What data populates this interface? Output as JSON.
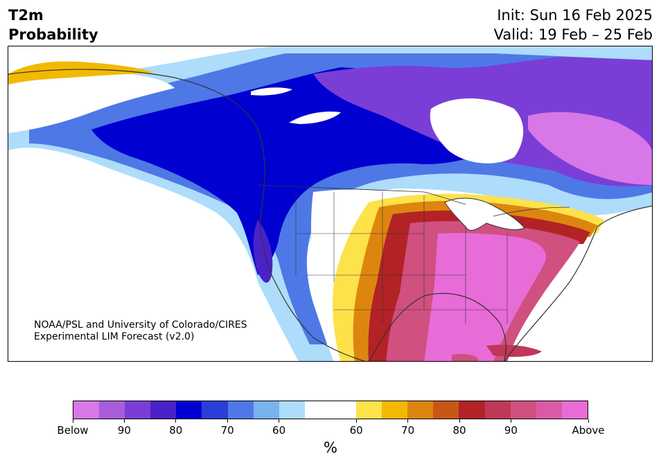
{
  "header": {
    "variable": "T2m",
    "product": "Probability",
    "init": "Init: Sun 16 Feb 2025",
    "valid": "Valid: 19 Feb – 25 Feb"
  },
  "credit": {
    "line1": "NOAA/PSL and University of Colorado/CIRES",
    "line2": "Experimental LIM Forecast (v2.0)"
  },
  "colorbar": {
    "units": "%",
    "colors": [
      "#d877e8",
      "#a85cdc",
      "#7a3ed6",
      "#4a22c8",
      "#0000d0",
      "#2a3ed8",
      "#4e78e6",
      "#78b2ef",
      "#aedcfb",
      "#ffffff",
      "#ffffff",
      "#fde24a",
      "#f2b900",
      "#dd860f",
      "#c85716",
      "#b32225",
      "#c03758",
      "#d05080",
      "#db5aa8",
      "#e86cd8"
    ],
    "tick_labels": [
      "Below",
      "90",
      "80",
      "70",
      "60",
      "60",
      "70",
      "80",
      "90",
      "Above"
    ]
  },
  "map": {
    "region": "North America",
    "below_normal_colors": [
      "#aedcfb",
      "#78b2ef",
      "#4e78e6",
      "#2a3ed8",
      "#0000d0",
      "#4a22c8",
      "#7a3ed6",
      "#a85cdc",
      "#d877e8"
    ],
    "above_normal_colors": [
      "#fde24a",
      "#f2b900",
      "#dd860f",
      "#c85716",
      "#b32225",
      "#c03758",
      "#d05080",
      "#db5aa8",
      "#e86cd8"
    ]
  }
}
